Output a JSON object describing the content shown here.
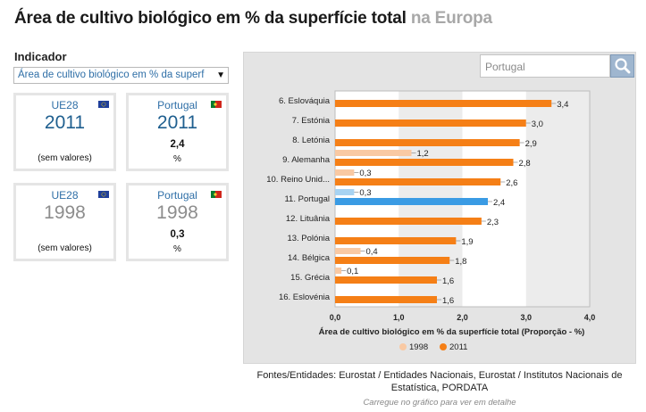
{
  "page": {
    "title_main": "Área de cultivo biológico em % da superfície total",
    "title_region": "na Europa"
  },
  "indicator": {
    "label": "Indicador",
    "selected": "Área de cultivo biológico em % da superf"
  },
  "cards": [
    {
      "name": "UE28",
      "year": "2011",
      "value": "",
      "unit": "",
      "note": "(sem valores)",
      "flag": "eu-flag-icon"
    },
    {
      "name": "Portugal",
      "year": "2011",
      "value": "2,4",
      "unit": "%",
      "note": "",
      "flag": "portugal-flag-icon"
    },
    {
      "name": "UE28",
      "year": "1998",
      "value": "",
      "unit": "",
      "note": "(sem valores)",
      "flag": "eu-flag-icon"
    },
    {
      "name": "Portugal",
      "year": "1998",
      "value": "0,3",
      "unit": "%",
      "note": "",
      "flag": "portugal-flag-icon"
    }
  ],
  "search": {
    "placeholder": "Portugal"
  },
  "colors": {
    "series_2011": "#f57f16",
    "series_1998": "#f9c9a3",
    "highlight_2011": "#3a9be4",
    "highlight_1998": "#a7d3f2"
  },
  "chart_data": {
    "type": "bar",
    "orientation": "horizontal",
    "categories": [
      "6. Eslováquia",
      "7. Estónia",
      "8. Letónia",
      "9. Alemanha",
      "10. Reino Unid...",
      "11. Portugal",
      "12. Lituânia",
      "13. Polónia",
      "14. Bélgica",
      "15. Grécia",
      "16. Eslovénia"
    ],
    "series": [
      {
        "name": "1998",
        "values": [
          null,
          null,
          null,
          1.2,
          0.3,
          0.3,
          null,
          null,
          0.4,
          0.1,
          null
        ]
      },
      {
        "name": "2011",
        "values": [
          3.4,
          3.0,
          2.9,
          2.8,
          2.6,
          2.4,
          2.3,
          1.9,
          1.8,
          1.6,
          1.6
        ]
      }
    ],
    "value_labels_1998": [
      "",
      "",
      "",
      "1,2",
      "0,3",
      "0,3",
      "",
      "",
      "0,4",
      "0,1",
      ""
    ],
    "value_labels_2011": [
      "3,4",
      "3,0",
      "2,9",
      "2,8",
      "2,6",
      "2,4",
      "2,3",
      "1,9",
      "1,8",
      "1,6",
      "1,6"
    ],
    "highlight_category": "11. Portugal",
    "xlim": [
      0,
      4
    ],
    "xticks": [
      "0,0",
      "1,0",
      "2,0",
      "3,0",
      "4,0"
    ],
    "xlabel": "Área de cultivo biológico em % da superfície total (Proporção - %)",
    "legend": [
      "1998",
      "2011"
    ],
    "legend_position": "bottom"
  },
  "footer": {
    "sources": "Fontes/Entidades: Eurostat / Entidades Nacionais, Eurostat / Institutos Nacionais de Estatística, PORDATA",
    "hint": "Carregue no gráfico para ver em detalhe"
  }
}
